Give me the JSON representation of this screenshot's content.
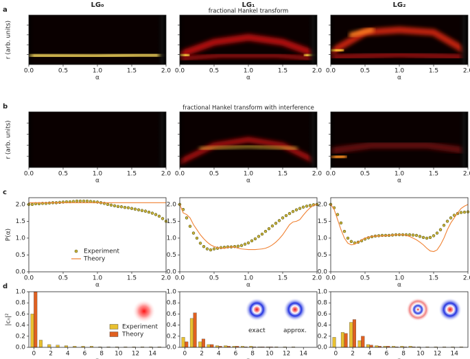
{
  "chart_data": [
    {
      "type": "heatmap",
      "panel": "a",
      "title": "LG₀",
      "xlim": [
        0,
        2
      ],
      "xticks": [
        {
          "value": 0,
          "label": "0.0"
        },
        0.5,
        {
          "value": 1,
          "label": "1.0"
        },
        1.5,
        {
          "value": 2,
          "label": "2.0"
        }
      ],
      "xlabel": "α",
      "ylabel": "r (arb. units)"
    },
    {
      "type": "heatmap",
      "title": "LG₁",
      "subtitle": "fractional Hankel transform",
      "xlim": [
        0,
        2
      ],
      "xticks": [
        {
          "value": 0,
          "label": "0.0"
        },
        0.5,
        {
          "value": 1,
          "label": "1.0"
        },
        1.5,
        {
          "value": 2,
          "label": "2.0"
        }
      ],
      "xlabel": "α"
    },
    {
      "type": "heatmap",
      "title": "LG₂",
      "xlim": [
        0,
        2
      ],
      "xticks": [
        {
          "value": 0,
          "label": "0.0"
        },
        0.5,
        {
          "value": 1,
          "label": "1.0"
        },
        1.5,
        {
          "value": 2,
          "label": "2.0"
        }
      ],
      "xlabel": "α"
    },
    {
      "type": "heatmap",
      "panel": "b",
      "xlim": [
        0,
        2
      ],
      "xticks": [
        {
          "value": 0,
          "label": "0.0"
        },
        0.5,
        {
          "value": 1,
          "label": "1.0"
        },
        1.5,
        {
          "value": 2,
          "label": "2.0"
        }
      ],
      "xlabel": "α",
      "ylabel": "r (arb. units)"
    },
    {
      "type": "heatmap",
      "subtitle": "fractional Hankel transform with interference",
      "xlim": [
        0,
        2
      ],
      "xticks": [
        {
          "value": 0,
          "label": "0.0"
        },
        0.5,
        {
          "value": 1,
          "label": "1.0"
        },
        1.5,
        {
          "value": 2,
          "label": "2.0"
        }
      ],
      "xlabel": "α"
    },
    {
      "type": "heatmap",
      "xlim": [
        0,
        2
      ],
      "xticks": [
        {
          "value": 0,
          "label": "0.0"
        },
        0.5,
        {
          "value": 1,
          "label": "1.0"
        },
        1.5,
        {
          "value": 2,
          "label": "2.0"
        }
      ],
      "xlabel": "α"
    },
    {
      "type": "line",
      "panel": "c",
      "xlabel": "α",
      "ylabel": "P(α)",
      "legend": "lower center",
      "xlim": [
        0,
        2
      ],
      "xticks": [
        {
          "value": 0,
          "label": "0.0"
        },
        0.5,
        {
          "value": 1,
          "label": "1.0"
        },
        1.5,
        {
          "value": 2,
          "label": "2.0"
        }
      ],
      "ylim": [
        0,
        2.2
      ],
      "yticks": [
        {
          "value": 0,
          "label": "0.0"
        },
        0.5,
        {
          "value": 1,
          "label": "1.0"
        },
        1.5,
        {
          "value": 2,
          "label": "2.0"
        }
      ],
      "x": [
        0,
        0.05,
        0.1,
        0.15,
        0.2,
        0.25,
        0.3,
        0.35,
        0.4,
        0.45,
        0.5,
        0.55,
        0.6,
        0.65,
        0.7,
        0.75,
        0.8,
        0.85,
        0.9,
        0.95,
        1,
        1.05,
        1.1,
        1.15,
        1.2,
        1.25,
        1.3,
        1.35,
        1.4,
        1.45,
        1.5,
        1.55,
        1.6,
        1.65,
        1.7,
        1.75,
        1.8,
        1.85,
        1.9,
        1.95,
        2
      ],
      "series": [
        {
          "name": "Experiment",
          "style": "markers",
          "color": "#c9b33a",
          "values": [
            2.0,
            2.0,
            2.02,
            2.02,
            2.03,
            2.03,
            2.04,
            2.05,
            2.05,
            2.06,
            2.07,
            2.08,
            2.08,
            2.09,
            2.1,
            2.1,
            2.1,
            2.1,
            2.09,
            2.08,
            2.07,
            2.05,
            2.03,
            2.0,
            1.98,
            1.96,
            1.94,
            1.93,
            1.91,
            1.9,
            1.88,
            1.86,
            1.84,
            1.82,
            1.8,
            1.77,
            1.74,
            1.7,
            1.65,
            1.58,
            1.5
          ]
        },
        {
          "name": "Theory",
          "style": "line",
          "color": "#f08030",
          "values": [
            2.05,
            2.05,
            2.05,
            2.05,
            2.05,
            2.05,
            2.05,
            2.05,
            2.05,
            2.05,
            2.05,
            2.05,
            2.05,
            2.05,
            2.05,
            2.05,
            2.05,
            2.05,
            2.05,
            2.05,
            2.05,
            2.05,
            2.05,
            2.05,
            2.05,
            2.05,
            2.05,
            2.05,
            2.05,
            2.05,
            2.05,
            2.05,
            2.05,
            2.05,
            2.05,
            2.05,
            2.05,
            2.05,
            2.05,
            2.05,
            2.05
          ]
        }
      ]
    },
    {
      "type": "line",
      "xlabel": "α",
      "xlim": [
        0,
        2
      ],
      "xticks": [
        {
          "value": 0,
          "label": "0.0"
        },
        0.5,
        {
          "value": 1,
          "label": "1.0"
        },
        1.5,
        {
          "value": 2,
          "label": "2.0"
        }
      ],
      "ylim": [
        0,
        2.2
      ],
      "yticks": [
        {
          "value": 0,
          "label": "0.0"
        },
        0.5,
        {
          "value": 1,
          "label": "1.0"
        },
        1.5,
        {
          "value": 2,
          "label": "2.0"
        }
      ],
      "x": [
        0,
        0.05,
        0.1,
        0.15,
        0.2,
        0.25,
        0.3,
        0.35,
        0.4,
        0.45,
        0.5,
        0.55,
        0.6,
        0.65,
        0.7,
        0.75,
        0.8,
        0.85,
        0.9,
        0.95,
        1,
        1.05,
        1.1,
        1.15,
        1.2,
        1.25,
        1.3,
        1.35,
        1.4,
        1.45,
        1.5,
        1.55,
        1.6,
        1.65,
        1.7,
        1.75,
        1.8,
        1.85,
        1.9,
        1.95,
        2
      ],
      "series": [
        {
          "name": "Experiment",
          "style": "markers",
          "color": "#c9b33a",
          "values": [
            2.0,
            1.85,
            1.6,
            1.35,
            1.15,
            1.0,
            0.85,
            0.75,
            0.68,
            0.65,
            0.68,
            0.7,
            0.72,
            0.73,
            0.74,
            0.74,
            0.75,
            0.76,
            0.78,
            0.82,
            0.86,
            0.92,
            0.98,
            1.05,
            1.12,
            1.2,
            1.28,
            1.36,
            1.44,
            1.52,
            1.6,
            1.67,
            1.73,
            1.79,
            1.84,
            1.88,
            1.92,
            1.95,
            1.97,
            1.99,
            2.0
          ]
        },
        {
          "name": "Theory",
          "style": "line",
          "color": "#f08030",
          "values": [
            2.0,
            1.75,
            1.7,
            1.6,
            1.4,
            1.25,
            1.1,
            0.98,
            0.88,
            0.8,
            0.75,
            0.72,
            0.7,
            0.7,
            0.72,
            0.74,
            0.73,
            0.7,
            0.68,
            0.67,
            0.66,
            0.66,
            0.66,
            0.67,
            0.68,
            0.7,
            0.74,
            0.8,
            0.88,
            0.98,
            1.1,
            1.25,
            1.4,
            1.48,
            1.5,
            1.55,
            1.68,
            1.8,
            1.9,
            1.97,
            2.0
          ]
        }
      ]
    },
    {
      "type": "line",
      "xlabel": "α",
      "xlim": [
        0,
        2
      ],
      "xticks": [
        {
          "value": 0,
          "label": "0.0"
        },
        0.5,
        {
          "value": 1,
          "label": "1.0"
        },
        1.5,
        {
          "value": 2,
          "label": "2.0"
        }
      ],
      "ylim": [
        0,
        2.2
      ],
      "yticks": [
        {
          "value": 0,
          "label": "0.0"
        },
        0.5,
        {
          "value": 1,
          "label": "1.0"
        },
        1.5,
        {
          "value": 2,
          "label": "2.0"
        }
      ],
      "x": [
        0,
        0.05,
        0.1,
        0.15,
        0.2,
        0.25,
        0.3,
        0.35,
        0.4,
        0.45,
        0.5,
        0.55,
        0.6,
        0.65,
        0.7,
        0.75,
        0.8,
        0.85,
        0.9,
        0.95,
        1,
        1.05,
        1.1,
        1.15,
        1.2,
        1.25,
        1.3,
        1.35,
        1.4,
        1.45,
        1.5,
        1.55,
        1.6,
        1.65,
        1.7,
        1.75,
        1.8,
        1.85,
        1.9,
        1.95,
        2
      ],
      "series": [
        {
          "name": "Experiment",
          "style": "markers",
          "color": "#c9b33a",
          "values": [
            2.0,
            1.9,
            1.7,
            1.45,
            1.2,
            1.0,
            0.9,
            0.86,
            0.88,
            0.92,
            0.97,
            1.01,
            1.04,
            1.06,
            1.07,
            1.08,
            1.08,
            1.08,
            1.09,
            1.1,
            1.1,
            1.1,
            1.1,
            1.1,
            1.09,
            1.08,
            1.05,
            1.02,
            1.0,
            1.02,
            1.07,
            1.15,
            1.25,
            1.38,
            1.5,
            1.6,
            1.68,
            1.73,
            1.76,
            1.77,
            1.78
          ]
        },
        {
          "name": "Theory",
          "style": "line",
          "color": "#f08030",
          "values": [
            2.0,
            1.85,
            1.55,
            1.25,
            1.0,
            0.85,
            0.8,
            0.82,
            0.88,
            0.95,
            1.0,
            1.03,
            1.05,
            1.06,
            1.06,
            1.06,
            1.07,
            1.08,
            1.09,
            1.1,
            1.1,
            1.1,
            1.08,
            1.05,
            1.0,
            0.95,
            0.88,
            0.8,
            0.7,
            0.62,
            0.6,
            0.65,
            0.8,
            1.0,
            1.25,
            1.45,
            1.6,
            1.75,
            1.88,
            1.95,
            2.0
          ]
        }
      ]
    },
    {
      "type": "bar",
      "panel": "d",
      "xlabel": "n",
      "ylabel": "|cₙ|²",
      "legend": "lower right",
      "xlim": [
        -0.6,
        15.6
      ],
      "xticks": [
        0,
        2,
        4,
        6,
        8,
        10,
        12,
        14
      ],
      "ylim": [
        0,
        1
      ],
      "yticks": [
        {
          "value": 0,
          "label": "0.0"
        },
        {
          "value": 0.2,
          "label": "0.2"
        },
        {
          "value": 0.4,
          "label": "0.4"
        },
        {
          "value": 0.6,
          "label": "0.6"
        },
        {
          "value": 0.8,
          "label": "0.8"
        },
        {
          "value": 1,
          "label": "1.0"
        }
      ],
      "x": [
        0,
        1,
        2,
        3,
        4,
        5,
        6,
        7,
        8,
        9,
        10,
        11,
        12,
        13,
        14,
        15
      ],
      "series": [
        {
          "name": "Experiment",
          "color": "#e8c030",
          "values": [
            0.6,
            0.13,
            0.05,
            0.04,
            0.03,
            0.02,
            0.02,
            0.02,
            0.01,
            0.01,
            0.01,
            0.01,
            0.01,
            0.01,
            0.01,
            0.01
          ]
        },
        {
          "name": "Theory",
          "color": "#e06020",
          "values": [
            1.0,
            0,
            0,
            0,
            0,
            0,
            0,
            0,
            0,
            0,
            0,
            0,
            0,
            0,
            0,
            0
          ]
        }
      ]
    },
    {
      "type": "bar",
      "xlabel": "n",
      "annotations": [
        "exact",
        "approx."
      ],
      "xlim": [
        -0.6,
        15.6
      ],
      "xticks": [
        0,
        2,
        4,
        6,
        8,
        10,
        12,
        14
      ],
      "ylim": [
        0,
        1
      ],
      "yticks": [
        {
          "value": 0,
          "label": "0.0"
        },
        {
          "value": 0.2,
          "label": "0.2"
        },
        {
          "value": 0.4,
          "label": "0.4"
        },
        {
          "value": 0.6,
          "label": "0.6"
        },
        {
          "value": 0.8,
          "label": "0.8"
        },
        {
          "value": 1,
          "label": "1.0"
        }
      ],
      "x": [
        0,
        1,
        2,
        3,
        4,
        5,
        6,
        7,
        8,
        9,
        10,
        11,
        12,
        13,
        14,
        15
      ],
      "series": [
        {
          "name": "Experiment",
          "color": "#e8c030",
          "values": [
            0.18,
            0.52,
            0.1,
            0.05,
            0.03,
            0.03,
            0.02,
            0.02,
            0.02,
            0.01,
            0.01,
            0.01,
            0.01,
            0.01,
            0,
            0
          ]
        },
        {
          "name": "Theory",
          "color": "#e06020",
          "values": [
            0.1,
            0.62,
            0.15,
            0.05,
            0.02,
            0.02,
            0.02,
            0.01,
            0.01,
            0.01,
            0.01,
            0,
            0,
            0,
            0,
            0
          ]
        }
      ]
    },
    {
      "type": "bar",
      "xlabel": "n",
      "xlim": [
        -0.6,
        15.6
      ],
      "xticks": [
        0,
        2,
        4,
        6,
        8,
        10,
        12,
        14
      ],
      "ylim": [
        0,
        1
      ],
      "yticks": [
        {
          "value": 0,
          "label": "0.0"
        },
        {
          "value": 0.2,
          "label": "0.2"
        },
        {
          "value": 0.4,
          "label": "0.4"
        },
        {
          "value": 0.6,
          "label": "0.6"
        },
        {
          "value": 0.8,
          "label": "0.8"
        },
        {
          "value": 1,
          "label": "1.0"
        }
      ],
      "x": [
        0,
        1,
        2,
        3,
        4,
        5,
        6,
        7,
        8,
        9,
        10,
        11,
        12,
        13,
        14,
        15
      ],
      "series": [
        {
          "name": "Experiment",
          "color": "#e8c030",
          "values": [
            0.18,
            0.27,
            0.45,
            0.12,
            0.05,
            0.03,
            0.02,
            0.02,
            0.02,
            0.02,
            0.01,
            0.01,
            0.01,
            0.01,
            0.01,
            0.01
          ]
        },
        {
          "name": "Theory",
          "color": "#e06020",
          "values": [
            0,
            0.25,
            0.5,
            0.2,
            0.04,
            0.02,
            0.02,
            0.01,
            0.01,
            0.01,
            0,
            0,
            0,
            0,
            0,
            0
          ]
        }
      ]
    }
  ]
}
